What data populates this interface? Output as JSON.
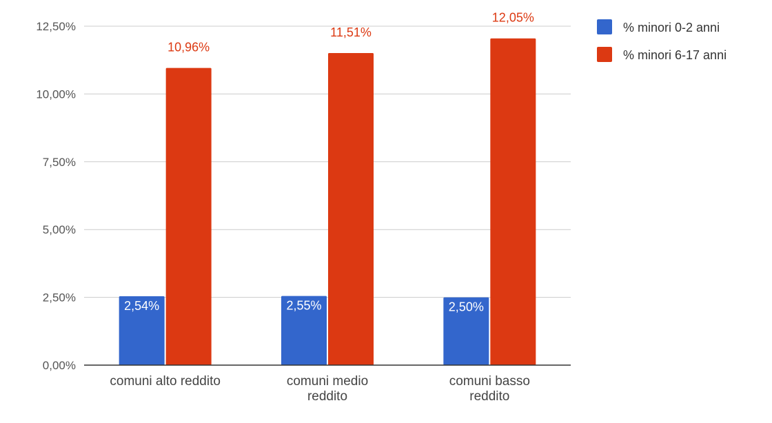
{
  "chart_data": {
    "type": "bar",
    "title": "",
    "xlabel": "",
    "ylabel": "",
    "categories": [
      [
        "comuni alto reddito"
      ],
      [
        "comuni medio",
        "reddito"
      ],
      [
        "comuni basso",
        "reddito"
      ]
    ],
    "series": [
      {
        "name": "% minori 0-2 anni",
        "color": "#3366cc",
        "values": [
          2.54,
          2.55,
          2.5
        ],
        "labels": [
          "2,54%",
          "2,55%",
          "2,50%"
        ],
        "label_color": "#ffffff"
      },
      {
        "name": "% minori 6-17 anni",
        "color": "#dc3912",
        "values": [
          10.96,
          11.51,
          12.05
        ],
        "labels": [
          "10,96%",
          "11,51%",
          "12,05%"
        ],
        "label_color": "#dc3912"
      }
    ],
    "ylim": [
      0,
      12.5
    ],
    "yticks": [
      0,
      2.5,
      5,
      7.5,
      10,
      12.5
    ],
    "ytick_labels": [
      "0,00%",
      "2,50%",
      "5,00%",
      "7,50%",
      "10,00%",
      "12,50%"
    ],
    "grid": true,
    "legend": "right"
  }
}
